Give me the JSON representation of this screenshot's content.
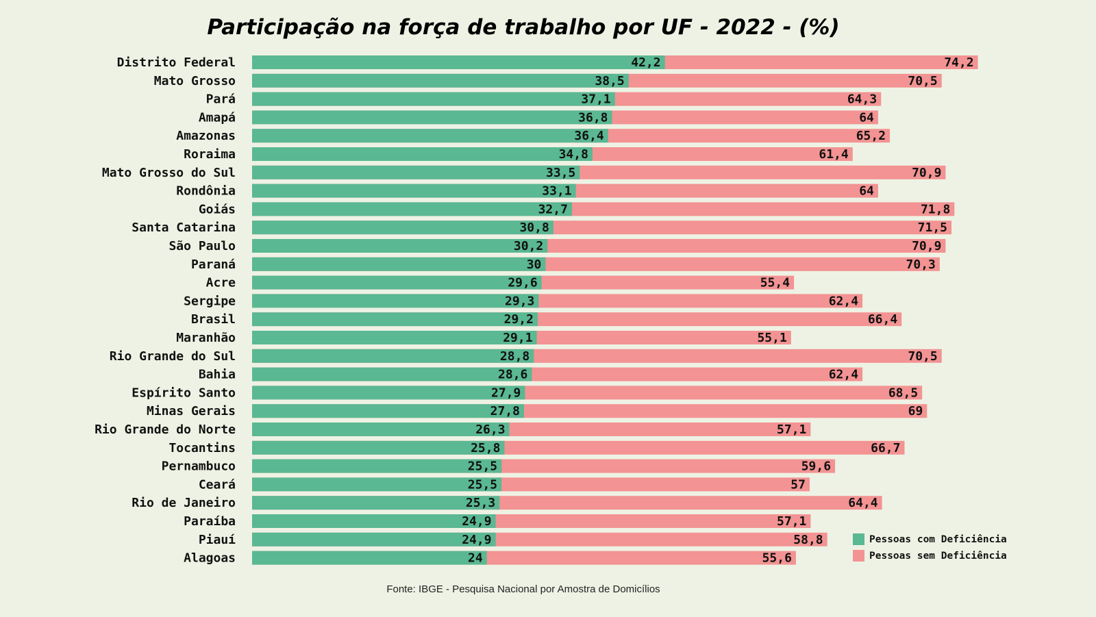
{
  "colors": {
    "background": "#eef2e4",
    "com": "#5ab893",
    "sem": "#f39393"
  },
  "chart_data": {
    "type": "bar",
    "orientation": "horizontal",
    "title": "Participação na força de trabalho por UF - 2022 - (%)",
    "source": "Fonte: IBGE -  Pesquisa Nacional por Amostra de Domicílios",
    "legend_position": "bottom-right",
    "categories": [
      "Distrito Federal",
      "Mato Grosso",
      "Pará",
      "Amapá",
      "Amazonas",
      "Roraima",
      "Mato Grosso do Sul",
      "Rondônia",
      "Goiás",
      "Santa Catarina",
      "São Paulo",
      "Paraná",
      "Acre",
      "Sergipe",
      "Brasil",
      "Maranhão",
      "Rio Grande do Sul",
      "Bahia",
      "Espírito Santo",
      "Minas Gerais",
      "Rio Grande do Norte",
      "Tocantins",
      "Pernambuco",
      "Ceará",
      "Rio de Janeiro",
      "Paraíba",
      "Piauí",
      "Alagoas"
    ],
    "series": [
      {
        "name": "Pessoas com Deficiência",
        "values": [
          42.2,
          38.5,
          37.1,
          36.8,
          36.4,
          34.8,
          33.5,
          33.1,
          32.7,
          30.8,
          30.2,
          30,
          29.6,
          29.3,
          29.2,
          29.1,
          28.8,
          28.6,
          27.9,
          27.8,
          26.3,
          25.8,
          25.5,
          25.5,
          25.3,
          24.9,
          24.9,
          24
        ]
      },
      {
        "name": "Pessoas sem Deficiência",
        "values": [
          74.2,
          70.5,
          64.3,
          64,
          65.2,
          61.4,
          70.9,
          64,
          71.8,
          71.5,
          70.9,
          70.3,
          55.4,
          62.4,
          66.4,
          55.1,
          70.5,
          62.4,
          68.5,
          69,
          57.1,
          66.7,
          59.6,
          57,
          64.4,
          57.1,
          58.8,
          55.6
        ]
      }
    ],
    "value_labels": {
      "com": [
        "42,2",
        "38,5",
        "37,1",
        "36,8",
        "36,4",
        "34,8",
        "33,5",
        "33,1",
        "32,7",
        "30,8",
        "30,2",
        "30",
        "29,6",
        "29,3",
        "29,2",
        "29,1",
        "28,8",
        "28,6",
        "27,9",
        "27,8",
        "26,3",
        "25,8",
        "25,5",
        "25,5",
        "25,3",
        "24,9",
        "24,9",
        "24"
      ],
      "sem": [
        "74,2",
        "70,5",
        "64,3",
        "64",
        "65,2",
        "61,4",
        "70,9",
        "64",
        "71,8",
        "71,5",
        "70,9",
        "70,3",
        "55,4",
        "62,4",
        "66,4",
        "55,1",
        "70,5",
        "62,4",
        "68,5",
        "69",
        "57,1",
        "66,7",
        "59,6",
        "57",
        "64,4",
        "57,1",
        "58,8",
        "55,6"
      ]
    }
  }
}
